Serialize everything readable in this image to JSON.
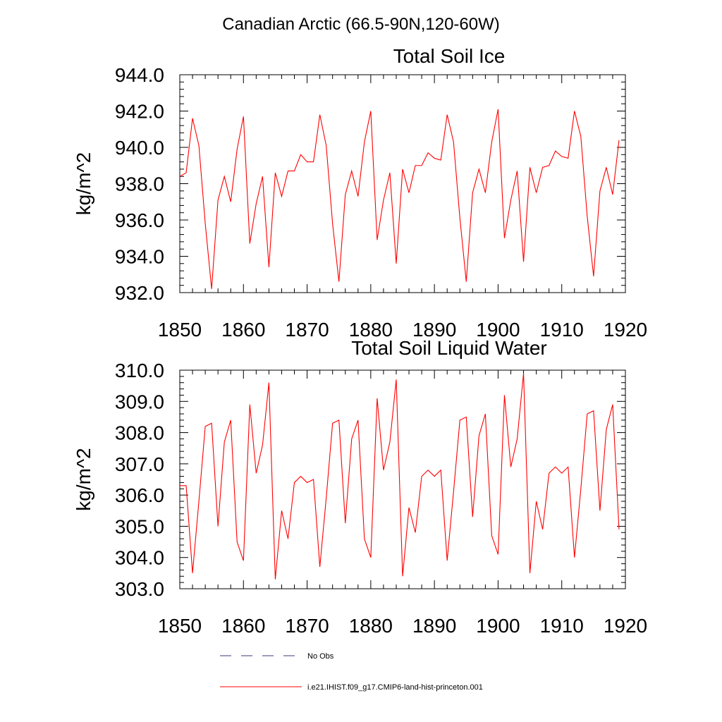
{
  "figure": {
    "title": "Canadian Arctic (66.5-90N,120-60W)"
  },
  "chart_data": [
    {
      "type": "line",
      "title": "Total Soil Ice",
      "xlabel": "",
      "ylabel": "kg/m^2",
      "xlim": [
        1850,
        1920
      ],
      "ylim": [
        932.0,
        944.0
      ],
      "xticks": [
        "1850",
        "1860",
        "1870",
        "1880",
        "1890",
        "1900",
        "1910",
        "1920"
      ],
      "yticks": [
        "944.0",
        "942.0",
        "940.0",
        "938.0",
        "936.0",
        "934.0",
        "932.0"
      ],
      "x": [
        1850,
        1851,
        1852,
        1853,
        1854,
        1855,
        1856,
        1857,
        1858,
        1859,
        1860,
        1861,
        1862,
        1863,
        1864,
        1865,
        1866,
        1867,
        1868,
        1869,
        1870,
        1871,
        1872,
        1873,
        1874,
        1875,
        1876,
        1877,
        1878,
        1879,
        1880,
        1881,
        1882,
        1883,
        1884,
        1885,
        1886,
        1887,
        1888,
        1889,
        1890,
        1891,
        1892,
        1893,
        1894,
        1895,
        1896,
        1897,
        1898,
        1899,
        1900,
        1901,
        1902,
        1903,
        1904,
        1905,
        1906,
        1907,
        1908,
        1909,
        1910,
        1911,
        1912,
        1913,
        1914,
        1915,
        1916,
        1917,
        1918,
        1919
      ],
      "series": [
        {
          "color": "#ff0000",
          "values": [
            938.4,
            938.6,
            941.6,
            940.1,
            935.8,
            932.2,
            937.1,
            938.4,
            937.0,
            939.9,
            941.7,
            934.7,
            936.9,
            938.4,
            933.4,
            938.6,
            937.3,
            938.7,
            938.7,
            939.6,
            939.2,
            939.2,
            941.8,
            940.1,
            935.8,
            932.6,
            937.4,
            938.7,
            937.3,
            940.3,
            942.0,
            934.9,
            937.1,
            938.6,
            933.6,
            938.8,
            937.5,
            939.0,
            939.0,
            939.7,
            939.4,
            939.3,
            941.8,
            940.3,
            936.1,
            932.6,
            937.5,
            938.8,
            937.5,
            940.3,
            942.1,
            935.0,
            937.1,
            938.7,
            933.7,
            938.9,
            937.5,
            938.9,
            939.0,
            939.8,
            939.5,
            939.4,
            942.0,
            940.6,
            936.2,
            932.9,
            937.6,
            938.9,
            937.4,
            940.4
          ]
        }
      ]
    },
    {
      "type": "line",
      "title": "Total Soil Liquid Water",
      "xlabel": "",
      "ylabel": "kg/m^2",
      "xlim": [
        1850,
        1920
      ],
      "ylim": [
        303.0,
        310.0
      ],
      "xticks": [
        "1850",
        "1860",
        "1870",
        "1880",
        "1890",
        "1900",
        "1910",
        "1920"
      ],
      "yticks": [
        "310.0",
        "309.0",
        "308.0",
        "307.0",
        "306.0",
        "305.0",
        "304.0",
        "303.0"
      ],
      "x": [
        1850,
        1851,
        1852,
        1853,
        1854,
        1855,
        1856,
        1857,
        1858,
        1859,
        1860,
        1861,
        1862,
        1863,
        1864,
        1865,
        1866,
        1867,
        1868,
        1869,
        1870,
        1871,
        1872,
        1873,
        1874,
        1875,
        1876,
        1877,
        1878,
        1879,
        1880,
        1881,
        1882,
        1883,
        1884,
        1885,
        1886,
        1887,
        1888,
        1889,
        1890,
        1891,
        1892,
        1893,
        1894,
        1895,
        1896,
        1897,
        1898,
        1899,
        1900,
        1901,
        1902,
        1903,
        1904,
        1905,
        1906,
        1907,
        1908,
        1909,
        1910,
        1911,
        1912,
        1913,
        1914,
        1915,
        1916,
        1917,
        1918,
        1919
      ],
      "series": [
        {
          "color": "#ff0000",
          "values": [
            306.3,
            306.3,
            303.5,
            305.8,
            308.2,
            308.3,
            305.0,
            307.7,
            308.4,
            304.5,
            303.9,
            308.9,
            306.7,
            307.6,
            309.6,
            303.3,
            305.5,
            304.6,
            306.4,
            306.6,
            306.4,
            306.5,
            303.7,
            305.9,
            308.3,
            308.4,
            305.1,
            307.8,
            308.4,
            304.6,
            304.0,
            309.1,
            306.8,
            307.7,
            309.7,
            303.4,
            305.6,
            304.8,
            306.6,
            306.8,
            306.6,
            306.8,
            303.9,
            306.1,
            308.4,
            308.5,
            305.3,
            307.9,
            308.6,
            304.7,
            304.1,
            309.2,
            306.9,
            307.8,
            309.9,
            303.5,
            305.8,
            304.9,
            306.7,
            306.9,
            306.7,
            306.9,
            304.0,
            306.2,
            308.6,
            308.7,
            305.5,
            308.1,
            308.9,
            304.9
          ]
        }
      ]
    }
  ],
  "legend": [
    {
      "label": "No Obs",
      "style": "dashed",
      "color": "#3a3a78"
    },
    {
      "label": "i.e21.IHIST.f09_g17.CMIP6-land-hist-princeton.001",
      "style": "solid",
      "color": "#ff0000"
    }
  ]
}
